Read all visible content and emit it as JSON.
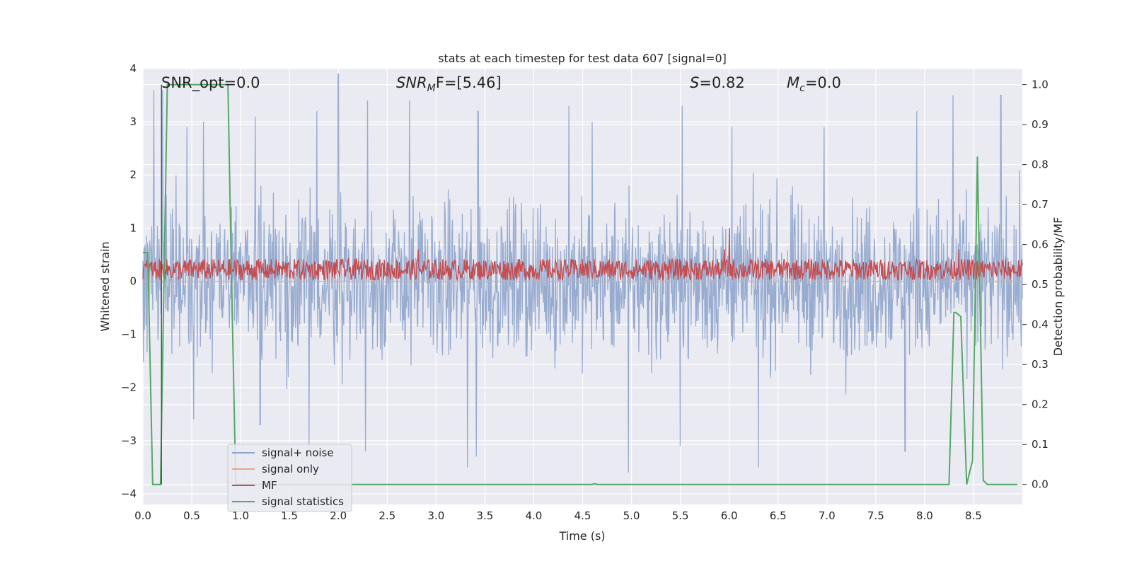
{
  "chart_data": {
    "type": "line",
    "title": "stats at each timestep for test data 607 [signal=0]",
    "xlabel": "Time (s)",
    "ylabel_left": "Whitened strain",
    "ylabel_right": "Detection probability/MF",
    "xlim": [
      0.0,
      9.0
    ],
    "ylim_left": [
      -4.2,
      4.0
    ],
    "ylim_right": [
      -0.05,
      1.04
    ],
    "x_ticks": [
      0.0,
      0.5,
      1.0,
      1.5,
      2.0,
      2.5,
      3.0,
      3.5,
      4.0,
      4.5,
      5.0,
      5.5,
      6.0,
      6.5,
      7.0,
      7.5,
      8.0,
      8.5
    ],
    "x_tick_labels": [
      "0.0",
      "0.5",
      "1.0",
      "1.5",
      "2.0",
      "2.5",
      "3.0",
      "3.5",
      "4.0",
      "4.5",
      "5.0",
      "5.5",
      "6.0",
      "6.5",
      "7.0",
      "7.5",
      "8.0",
      "8.5"
    ],
    "y_left_ticks": [
      4,
      3,
      2,
      1,
      0,
      -1,
      -2,
      -3,
      -4
    ],
    "y_left_tick_labels": [
      "4",
      "3",
      "2",
      "1",
      "0",
      "−1",
      "−2",
      "−3",
      "−4"
    ],
    "y_right_ticks": [
      1.0,
      0.9,
      0.8,
      0.7,
      0.6,
      0.5,
      0.4,
      0.3,
      0.2,
      0.1,
      0.0
    ],
    "y_right_tick_labels": [
      "1.0",
      "0.9",
      "0.8",
      "0.7",
      "0.6",
      "0.5",
      "0.4",
      "0.3",
      "0.2",
      "0.1",
      "0.0"
    ],
    "grid": true,
    "legend_position": "lower-left",
    "annotations": {
      "snr_opt": "SNR_opt=0.0",
      "snr_mf_sym": "SNR",
      "snr_mf_sub": "M",
      "snr_mf_rest": "F=[5.46]",
      "s_sym": "S",
      "s_rest": "=0.82",
      "mc_sym": "M",
      "mc_sub": "c",
      "mc_rest": "=0.0"
    },
    "series": [
      {
        "name": "signal+ noise",
        "color": "#8fa5cc",
        "axis": "left",
        "noise_sigma": 0.7,
        "peaks": [
          [
            0.11,
            3.6
          ],
          [
            0.2,
            3.6
          ],
          [
            0.45,
            2.9
          ],
          [
            0.62,
            3.0
          ],
          [
            1.15,
            3.1
          ],
          [
            1.78,
            3.2
          ],
          [
            2.0,
            3.9
          ],
          [
            2.3,
            3.4
          ],
          [
            2.73,
            3.4
          ],
          [
            3.43,
            3.2
          ],
          [
            4.36,
            3.3
          ],
          [
            4.6,
            3.0
          ],
          [
            5.52,
            3.3
          ],
          [
            6.03,
            2.9
          ],
          [
            6.97,
            2.9
          ],
          [
            7.92,
            3.2
          ],
          [
            8.29,
            3.5
          ],
          [
            8.78,
            3.5
          ],
          [
            3.32,
            -3.5
          ],
          [
            3.41,
            -3.3
          ],
          [
            4.97,
            -3.6
          ],
          [
            6.3,
            -3.5
          ],
          [
            7.8,
            -3.2
          ],
          [
            1.7,
            -3.2
          ],
          [
            2.28,
            -3.2
          ],
          [
            5.5,
            -3.1
          ],
          [
            0.52,
            -2.6
          ],
          [
            1.2,
            -2.7
          ]
        ]
      },
      {
        "name": "signal only",
        "color": "#e9a882",
        "axis": "left",
        "x": [
          0.0,
          9.0
        ],
        "y": [
          0.0,
          0.0
        ]
      },
      {
        "name": "MF",
        "color": "#c44e52",
        "axis": "left",
        "center": 0.22,
        "amplitude": 0.2,
        "peaks": [
          [
            2.82,
            0.6
          ],
          [
            5.95,
            0.6
          ],
          [
            6.0,
            1.0
          ],
          [
            8.35,
            0.6
          ]
        ]
      },
      {
        "name": "signal statistics",
        "color": "#55a868",
        "axis": "right",
        "x": [
          0.0,
          0.05,
          0.1,
          0.12,
          0.18,
          0.25,
          0.87,
          0.9,
          0.95,
          4.6,
          4.62,
          4.65,
          8.25,
          8.3,
          8.32,
          8.37,
          8.43,
          8.49,
          8.54,
          8.6,
          8.64,
          8.7,
          8.95
        ],
        "y": [
          0.58,
          0.58,
          0.0,
          0.0,
          0.0,
          1.0,
          1.0,
          0.6,
          0.0,
          0.0,
          0.002,
          0.0,
          0.0,
          0.43,
          0.43,
          0.42,
          0.0,
          0.06,
          0.82,
          0.01,
          0.0,
          0.0,
          0.0
        ]
      }
    ],
    "vertical_line": {
      "x": 0.19,
      "color": "#555555"
    }
  }
}
